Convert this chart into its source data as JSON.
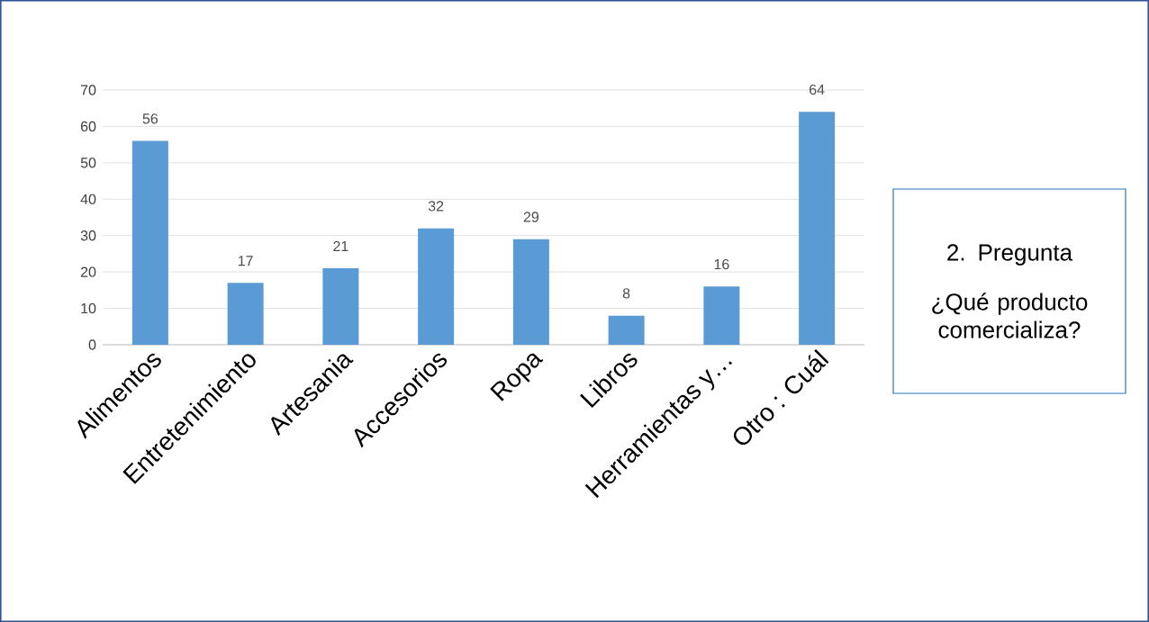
{
  "chart_data": {
    "type": "bar",
    "title": "2. Pregunta",
    "subtitle": "¿Qué producto comercializa?",
    "categories": [
      "Alimentos",
      "Entretenimiento",
      "Artesania",
      "Accesorios",
      "Ropa",
      "Libros",
      "Herramientas y…",
      "Otro : Cuál"
    ],
    "values": [
      56,
      17,
      21,
      32,
      29,
      8,
      16,
      64
    ],
    "color": "#5b9bd5",
    "ylim": [
      0,
      70
    ],
    "yticks": [
      0,
      10,
      20,
      30,
      40,
      50,
      60,
      70
    ],
    "grid": "y",
    "data_labels": true
  }
}
